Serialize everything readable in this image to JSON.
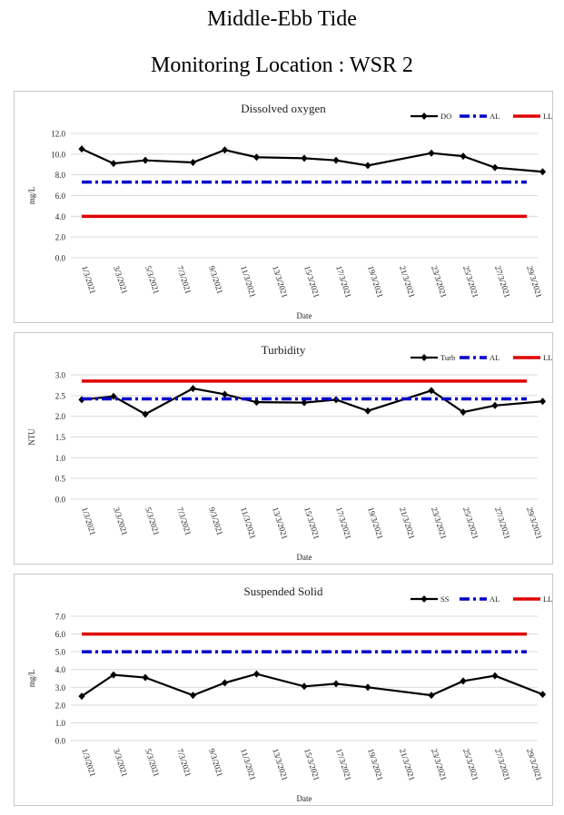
{
  "page": {
    "title": "Middle-Ebb Tide",
    "subtitle": "Monitoring Location : WSR 2"
  },
  "chart_data": [
    {
      "type": "line",
      "title": "Dissolved oxygen",
      "xlabel": "Date",
      "ylabel": "mg/L",
      "ylim": [
        0,
        12
      ],
      "ystep": 2,
      "ydecimals": 1,
      "grid": true,
      "legend": "top-right",
      "x_ticks": [
        "1/3/2021",
        "3/3/2021",
        "5/3/2021",
        "7/3/2021",
        "9/3/2021",
        "11/3/2021",
        "13/3/2021",
        "15/3/2021",
        "17/3/2021",
        "19/3/2021",
        "21/3/2021",
        "23/3/2021",
        "25/3/2021",
        "27/3/2021",
        "29/3/2021"
      ],
      "x_day_range": [
        1,
        29
      ],
      "series": [
        {
          "name": "DO",
          "style": "marker-line",
          "color": "#000000",
          "x": [
            1,
            3,
            5,
            8,
            10,
            12,
            15,
            17,
            19,
            23,
            25,
            27,
            30
          ],
          "values": [
            10.5,
            9.1,
            9.4,
            9.2,
            10.4,
            9.7,
            9.6,
            9.4,
            8.9,
            10.1,
            9.8,
            8.7,
            8.3
          ]
        },
        {
          "name": "AL",
          "style": "dashdot",
          "color": "#0000cc",
          "constant": 7.3
        },
        {
          "name": "LL",
          "style": "solid",
          "color": "#e00000",
          "constant": 4.0
        }
      ]
    },
    {
      "type": "line",
      "title": "Turbidity",
      "xlabel": "Date",
      "ylabel": "NTU",
      "ylim": [
        0,
        3
      ],
      "ystep": 0.5,
      "ydecimals": 1,
      "grid": true,
      "legend": "top-right",
      "x_ticks": [
        "1/3/2021",
        "3/3/2021",
        "5/3/2021",
        "7/3/2021",
        "9/3/2021",
        "11/3/2021",
        "13/3/2021",
        "15/3/2021",
        "17/3/2021",
        "19/3/2021",
        "21/3/2021",
        "23/3/2021",
        "25/3/2021",
        "27/3/2021",
        "29/3/2021"
      ],
      "x_day_range": [
        1,
        29
      ],
      "series": [
        {
          "name": "Turb",
          "style": "marker-line",
          "color": "#000000",
          "x": [
            1,
            3,
            5,
            8,
            10,
            12,
            15,
            17,
            19,
            23,
            25,
            27,
            30
          ],
          "values": [
            2.4,
            2.48,
            2.05,
            2.67,
            2.53,
            2.34,
            2.33,
            2.4,
            2.13,
            2.62,
            2.1,
            2.26,
            2.36
          ]
        },
        {
          "name": "AL",
          "style": "dashdot",
          "color": "#0000cc",
          "constant": 2.42
        },
        {
          "name": "LL",
          "style": "solid",
          "color": "#e00000",
          "constant": 2.85
        }
      ]
    },
    {
      "type": "line",
      "title": "Suspended Solid",
      "xlabel": "Date",
      "ylabel": "mg/L",
      "ylim": [
        0,
        7
      ],
      "ystep": 1,
      "ydecimals": 1,
      "grid": true,
      "legend": "top-right",
      "x_ticks": [
        "1/3/2021",
        "3/3/2021",
        "5/3/2021",
        "7/3/2021",
        "9/3/2021",
        "11/3/2021",
        "13/3/2021",
        "15/3/2021",
        "17/3/2021",
        "19/3/2021",
        "21/3/2021",
        "23/3/2021",
        "25/3/2021",
        "27/3/2021",
        "29/3/2021"
      ],
      "x_day_range": [
        1,
        29
      ],
      "series": [
        {
          "name": "SS",
          "style": "marker-line",
          "color": "#000000",
          "x": [
            1,
            3,
            5,
            8,
            10,
            12,
            15,
            17,
            19,
            23,
            25,
            27,
            30
          ],
          "values": [
            2.5,
            3.7,
            3.55,
            2.55,
            3.25,
            3.75,
            3.05,
            3.2,
            3.0,
            2.55,
            3.35,
            3.65,
            2.6
          ]
        },
        {
          "name": "AL",
          "style": "dashdot",
          "color": "#0000cc",
          "constant": 5.0
        },
        {
          "name": "LL",
          "style": "solid",
          "color": "#e00000",
          "constant": 6.0
        }
      ]
    }
  ]
}
